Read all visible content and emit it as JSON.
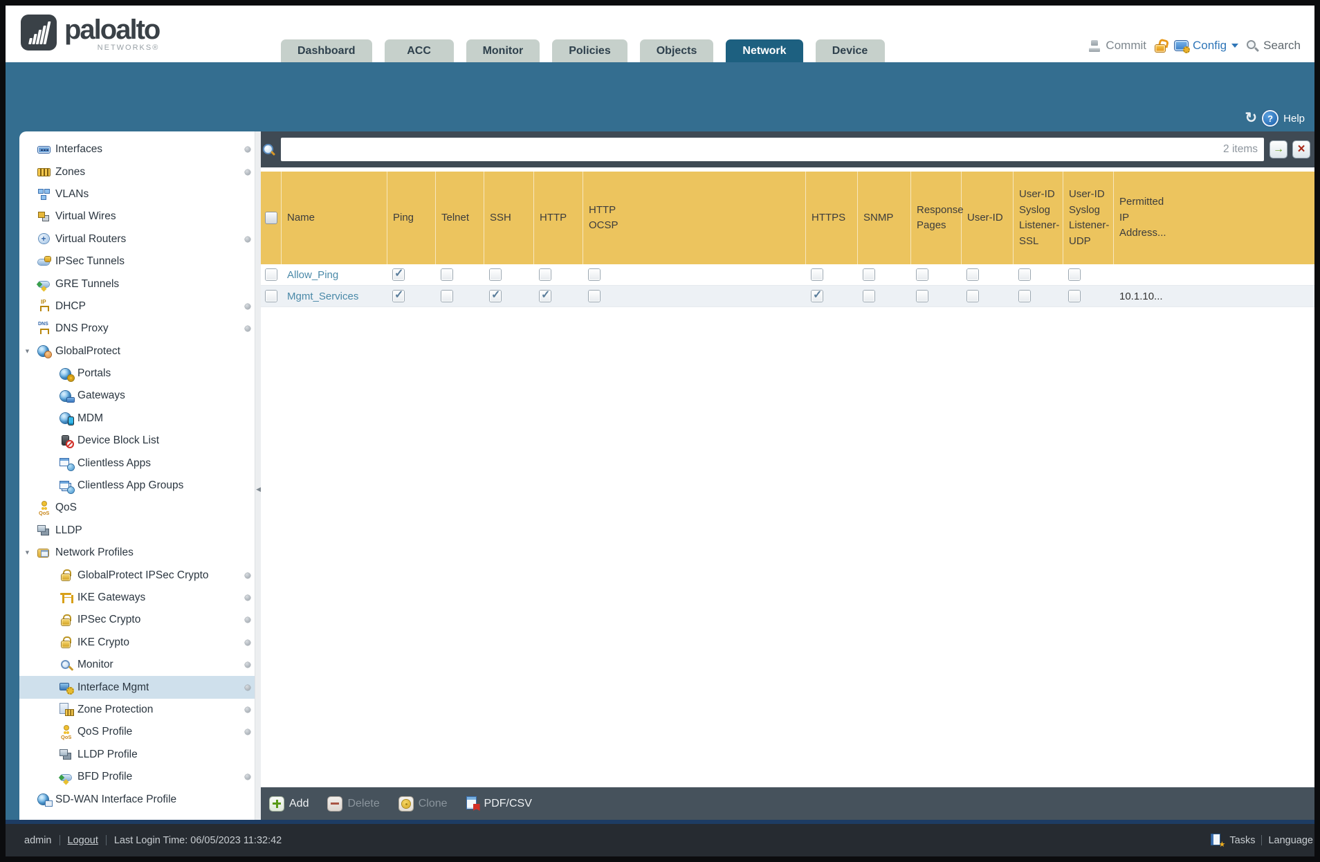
{
  "brand": {
    "name": "paloalto",
    "subtitle": "NETWORKS®"
  },
  "nav_tabs": [
    {
      "label": "Dashboard",
      "active": false
    },
    {
      "label": "ACC",
      "active": false
    },
    {
      "label": "Monitor",
      "active": false
    },
    {
      "label": "Policies",
      "active": false
    },
    {
      "label": "Objects",
      "active": false
    },
    {
      "label": "Network",
      "active": true
    },
    {
      "label": "Device",
      "active": false
    }
  ],
  "header_utils": {
    "commit": "Commit",
    "config": "Config",
    "search": "Search"
  },
  "subheader": {
    "help_label": "Help"
  },
  "sidebar": {
    "items": [
      {
        "label": "Interfaces",
        "icon": "interfaces",
        "level": 0,
        "dot": true
      },
      {
        "label": "Zones",
        "icon": "zones",
        "level": 0,
        "dot": true
      },
      {
        "label": "VLANs",
        "icon": "vlans",
        "level": 0
      },
      {
        "label": "Virtual Wires",
        "icon": "virtual-wires",
        "level": 0
      },
      {
        "label": "Virtual Routers",
        "icon": "virtual-routers",
        "level": 0,
        "dot": true
      },
      {
        "label": "IPSec Tunnels",
        "icon": "ipsec-tunnels",
        "level": 0
      },
      {
        "label": "GRE Tunnels",
        "icon": "gre-tunnels",
        "level": 0
      },
      {
        "label": "DHCP",
        "icon": "dhcp",
        "level": 0,
        "dot": true
      },
      {
        "label": "DNS Proxy",
        "icon": "dns-proxy",
        "level": 0,
        "dot": true
      },
      {
        "label": "GlobalProtect",
        "icon": "globalprotect",
        "level": 0,
        "expanded": true
      },
      {
        "label": "Portals",
        "icon": "portals",
        "level": 1
      },
      {
        "label": "Gateways",
        "icon": "gateways",
        "level": 1
      },
      {
        "label": "MDM",
        "icon": "mdm",
        "level": 1
      },
      {
        "label": "Device Block List",
        "icon": "device-block-list",
        "level": 1
      },
      {
        "label": "Clientless Apps",
        "icon": "clientless-apps",
        "level": 1
      },
      {
        "label": "Clientless App Groups",
        "icon": "clientless-app-groups",
        "level": 1
      },
      {
        "label": "QoS",
        "icon": "qos",
        "level": 0
      },
      {
        "label": "LLDP",
        "icon": "lldp",
        "level": 0
      },
      {
        "label": "Network Profiles",
        "icon": "network-profiles",
        "level": 0,
        "expanded": true
      },
      {
        "label": "GlobalProtect IPSec Crypto",
        "icon": "padlock",
        "level": 1,
        "dot": true
      },
      {
        "label": "IKE Gateways",
        "icon": "ike-gateways",
        "level": 1,
        "dot": true
      },
      {
        "label": "IPSec Crypto",
        "icon": "padlock",
        "level": 1,
        "dot": true
      },
      {
        "label": "IKE Crypto",
        "icon": "padlock",
        "level": 1,
        "dot": true
      },
      {
        "label": "Monitor",
        "icon": "monitor",
        "level": 1,
        "dot": true
      },
      {
        "label": "Interface Mgmt",
        "icon": "interface-mgmt",
        "level": 1,
        "selected": true,
        "dot": true
      },
      {
        "label": "Zone Protection",
        "icon": "zone-protection",
        "level": 1,
        "dot": true
      },
      {
        "label": "QoS Profile",
        "icon": "qos",
        "level": 1,
        "dot": true
      },
      {
        "label": "LLDP Profile",
        "icon": "lldp",
        "level": 1
      },
      {
        "label": "BFD Profile",
        "icon": "bfd",
        "level": 1,
        "dot": true
      },
      {
        "label": "SD-WAN Interface Profile",
        "icon": "sd-wan",
        "level": 0
      }
    ]
  },
  "filter_bar": {
    "value": "",
    "count_label": "2 items"
  },
  "table": {
    "columns": [
      "Name",
      "Ping",
      "Telnet",
      "SSH",
      "HTTP",
      "HTTP\nOCSP",
      "HTTPS",
      "SNMP",
      "Response\nPages",
      "User-ID",
      "User-ID\nSyslog\nListener-\nSSL",
      "User-ID\nSyslog\nListener-\nUDP",
      "Permitted\nIP\nAddress..."
    ],
    "rows": [
      {
        "name": "Allow_Ping",
        "services": {
          "ping": true,
          "telnet": false,
          "ssh": false,
          "http": false,
          "http_ocsp": false,
          "https": false,
          "snmp": false,
          "response_pages": false,
          "user_id": false,
          "uid_syslog_ssl": false,
          "uid_syslog_udp": false
        },
        "permitted_ip": ""
      },
      {
        "name": "Mgmt_Services",
        "services": {
          "ping": true,
          "telnet": false,
          "ssh": true,
          "http": true,
          "http_ocsp": false,
          "https": true,
          "snmp": false,
          "response_pages": false,
          "user_id": false,
          "uid_syslog_ssl": false,
          "uid_syslog_udp": false
        },
        "permitted_ip": "10.1.10..."
      }
    ]
  },
  "action_bar": {
    "buttons": [
      {
        "label": "Add",
        "icon": "add",
        "enabled": true
      },
      {
        "label": "Delete",
        "icon": "delete",
        "enabled": false
      },
      {
        "label": "Clone",
        "icon": "clone",
        "enabled": false
      },
      {
        "label": "PDF/CSV",
        "icon": "pdf-csv",
        "enabled": true
      }
    ]
  },
  "footer": {
    "user": "admin",
    "logout_label": "Logout",
    "last_login": "Last Login Time: 06/05/2023 11:32:42",
    "tasks_label": "Tasks",
    "language_label": "Language"
  },
  "colors": {
    "accent_teal": "#346e90",
    "active_tab": "#1d6080",
    "table_header": "#ecc45e",
    "link": "#4a89a8"
  }
}
